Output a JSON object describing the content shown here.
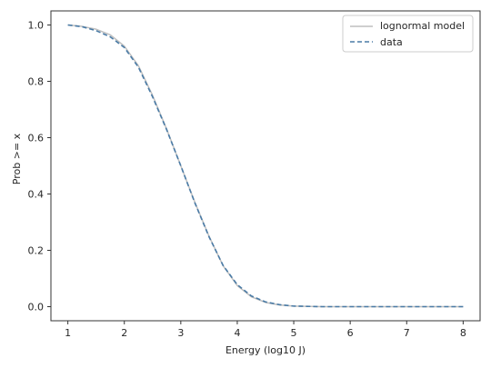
{
  "chart_data": {
    "type": "line",
    "xlabel": "Energy (log10 J)",
    "ylabel": "Prob >= x",
    "xlim": [
      0.7,
      8.3
    ],
    "ylim": [
      -0.05,
      1.05
    ],
    "xticks": [
      "1",
      "2",
      "3",
      "4",
      "5",
      "6",
      "7",
      "8"
    ],
    "yticks": [
      "0.0",
      "0.2",
      "0.4",
      "0.6",
      "0.8",
      "1.0"
    ],
    "grid": false,
    "legend": "top-right",
    "series": [
      {
        "name": "lognormal model",
        "color": "#bfbfbf",
        "style": "solid",
        "x": [
          1.0,
          1.25,
          1.5,
          1.75,
          2.0,
          2.25,
          2.5,
          2.75,
          3.0,
          3.25,
          3.5,
          3.75,
          4.0,
          4.25,
          4.5,
          4.75,
          5.0,
          5.5,
          6.0,
          6.5,
          7.0,
          7.5,
          8.0
        ],
        "y": [
          1.0,
          0.995,
          0.985,
          0.965,
          0.925,
          0.855,
          0.75,
          0.63,
          0.5,
          0.37,
          0.25,
          0.145,
          0.075,
          0.035,
          0.015,
          0.006,
          0.002,
          0.0,
          0.0,
          0.0,
          0.0,
          0.0,
          0.0
        ]
      },
      {
        "name": "data",
        "color": "#4a7ba6",
        "style": "dashed",
        "x": [
          1.0,
          1.25,
          1.5,
          1.75,
          2.0,
          2.25,
          2.5,
          2.75,
          3.0,
          3.25,
          3.5,
          3.75,
          4.0,
          4.25,
          4.5,
          4.75,
          5.0,
          5.5,
          6.0,
          6.5,
          7.0,
          7.5,
          8.0
        ],
        "y": [
          1.0,
          0.994,
          0.98,
          0.958,
          0.92,
          0.85,
          0.745,
          0.628,
          0.5,
          0.368,
          0.248,
          0.146,
          0.078,
          0.038,
          0.017,
          0.007,
          0.002,
          0.0,
          0.0,
          0.0,
          0.0,
          0.0,
          0.0
        ]
      }
    ]
  }
}
